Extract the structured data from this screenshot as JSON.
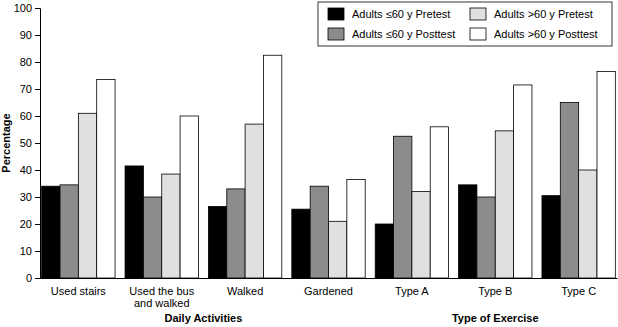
{
  "chart_data": {
    "type": "bar",
    "y_label": "Percentage",
    "categories": [
      "Used stairs",
      "Used the bus\nand walked",
      "Walked",
      "Gardened",
      "Type A",
      "Type B",
      "Type C"
    ],
    "series": [
      {
        "name": "Adults ≤60 y Pretest",
        "color": "#000000",
        "values": [
          34,
          41.5,
          26.5,
          25.5,
          20,
          34.5,
          30.5
        ]
      },
      {
        "name": "Adults ≤60 y Posttest",
        "color": "#8c8c8c",
        "values": [
          34.5,
          30,
          33,
          34,
          52.5,
          30,
          65
        ]
      },
      {
        "name": "Adults >60 y Pretest",
        "color": "#e0e0e0",
        "values": [
          61,
          38.5,
          57,
          21,
          32,
          54.5,
          40
        ]
      },
      {
        "name": "Adults >60 y Posttest",
        "color": "#ffffff",
        "values": [
          73.5,
          60,
          82.5,
          36.5,
          56,
          71.5,
          76.5
        ]
      }
    ],
    "ylim": [
      0,
      100
    ],
    "yticks": [
      0,
      10,
      20,
      30,
      40,
      50,
      60,
      70,
      80,
      90,
      100
    ],
    "grid": false,
    "legend": "upper right",
    "annotations": [
      {
        "text": "Daily Activities",
        "from": "Used stairs",
        "to": "Gardened"
      },
      {
        "text": "Type of Exercise",
        "from": "Type A",
        "to": "Type C"
      }
    ]
  }
}
